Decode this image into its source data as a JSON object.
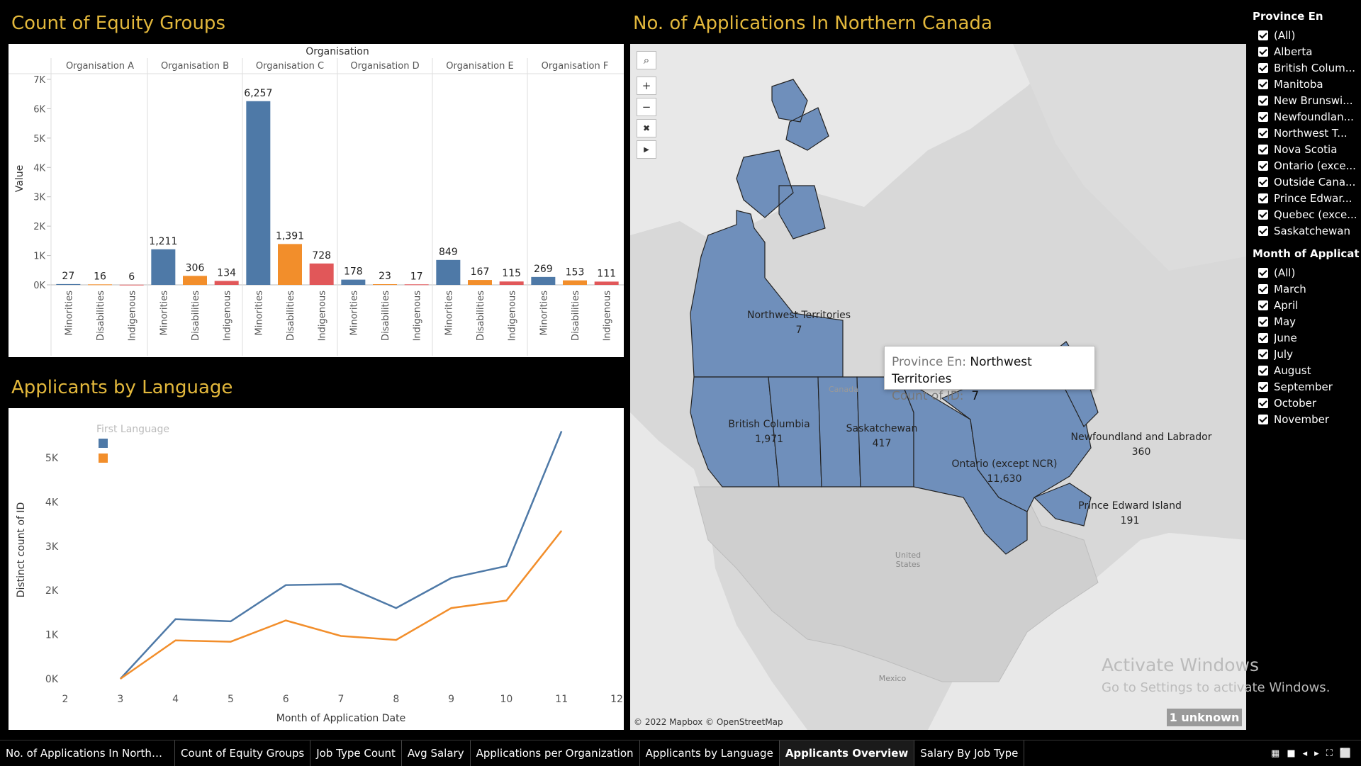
{
  "equity": {
    "title": "Count of Equity Groups",
    "header": "Organisation",
    "ylabel": "Value",
    "yticks": [
      "0K",
      "1K",
      "2K",
      "3K",
      "4K",
      "5K",
      "6K",
      "7K"
    ],
    "colors": {
      "Minorities": "#4e79a7",
      "Disabilities": "#f28e2b",
      "Indigenous": "#e15759"
    }
  },
  "chart_data": [
    {
      "type": "bar",
      "title": "Count of Equity Groups",
      "xlabel": "Organisation",
      "ylabel": "Value",
      "ylim": [
        0,
        7000
      ],
      "groups": [
        "Organisation A",
        "Organisation B",
        "Organisation C",
        "Organisation D",
        "Organisation E",
        "Organisation F"
      ],
      "categories": [
        "Minorities",
        "Disabilities",
        "Indigenous"
      ],
      "values": [
        [
          27,
          16,
          6
        ],
        [
          1211,
          306,
          134
        ],
        [
          6257,
          1391,
          728
        ],
        [
          178,
          23,
          17
        ],
        [
          849,
          167,
          115
        ],
        [
          269,
          153,
          111
        ]
      ],
      "labels": [
        [
          "27",
          "16",
          "6"
        ],
        [
          "1,211",
          "306",
          "134"
        ],
        [
          "6,257",
          "1,391",
          "728"
        ],
        [
          "178",
          "23",
          "17"
        ],
        [
          "849",
          "167",
          "115"
        ],
        [
          "269",
          "153",
          "111"
        ]
      ]
    },
    {
      "type": "line",
      "title": "Applicants by Language",
      "xlabel": "Month of Application Date",
      "ylabel": "Distinct count of ID",
      "legend_title": "First Language",
      "x": [
        3,
        4,
        5,
        6,
        7,
        8,
        9,
        10,
        11
      ],
      "xticks": [
        "2",
        "3",
        "4",
        "5",
        "6",
        "7",
        "8",
        "9",
        "10",
        "11",
        "12"
      ],
      "yticks": [
        "0K",
        "1K",
        "2K",
        "3K",
        "4K",
        "5K"
      ],
      "ylim": [
        0,
        5800
      ],
      "xlim": [
        2,
        12
      ],
      "series": [
        {
          "color": "#4e79a7",
          "values": [
            0,
            1350,
            1300,
            2120,
            2140,
            1600,
            2280,
            2550,
            5600
          ]
        },
        {
          "color": "#f28e2b",
          "values": [
            0,
            870,
            840,
            1320,
            970,
            880,
            1600,
            1770,
            3350
          ]
        }
      ]
    }
  ],
  "language": {
    "title": "Applicants by Language"
  },
  "map": {
    "title": "No. of Applications In Northern Canada",
    "credit": "© 2022 Mapbox © OpenStreetMap",
    "fill": "#6f8fbb",
    "labels": [
      {
        "name": "Northwest Territories",
        "value": "7"
      },
      {
        "name": "British Columbia",
        "value": "1,971"
      },
      {
        "name": "Saskatchewan",
        "value": "417"
      },
      {
        "name": "Ontario (except NCR)",
        "value": "11,630"
      },
      {
        "name": "Newfoundland and Labrador",
        "value": "360"
      },
      {
        "name": "Prince Edward Island",
        "value": "191"
      }
    ],
    "basemap_labels": {
      "canada": "Canada",
      "usa1": "United",
      "usa2": "States",
      "mexico": "Mexico"
    },
    "tooltip": {
      "k1": "Province En:",
      "v1": "Northwest Territories",
      "k2": "Count of ID:",
      "v2": "7"
    },
    "unknown": "1 unknown"
  },
  "watermark": {
    "line1": "Activate Windows",
    "line2": "Go to Settings to activate Windows."
  },
  "filters": {
    "province_title": "Province En",
    "provinces": [
      "(All)",
      "Alberta",
      "British Colum...",
      "Manitoba",
      "New Brunswi...",
      "Newfoundlan...",
      "Northwest T...",
      "Nova Scotia",
      "Ontario (exce...",
      "Outside Cana...",
      "Prince Edwar...",
      "Quebec (exce...",
      "Saskatchewan"
    ],
    "month_title": "Month of Applicati...",
    "months": [
      "(All)",
      "March",
      "April",
      "May",
      "June",
      "July",
      "August",
      "September",
      "October",
      "November"
    ]
  },
  "tabs": [
    "No. of Applications In Northern ...",
    "Count of Equity Groups",
    "Job Type Count",
    "Avg Salary",
    "Applications per Organization",
    "Applicants by Language",
    "Applicants Overview",
    "Salary By Job Type"
  ],
  "active_tab": "Applicants Overview"
}
